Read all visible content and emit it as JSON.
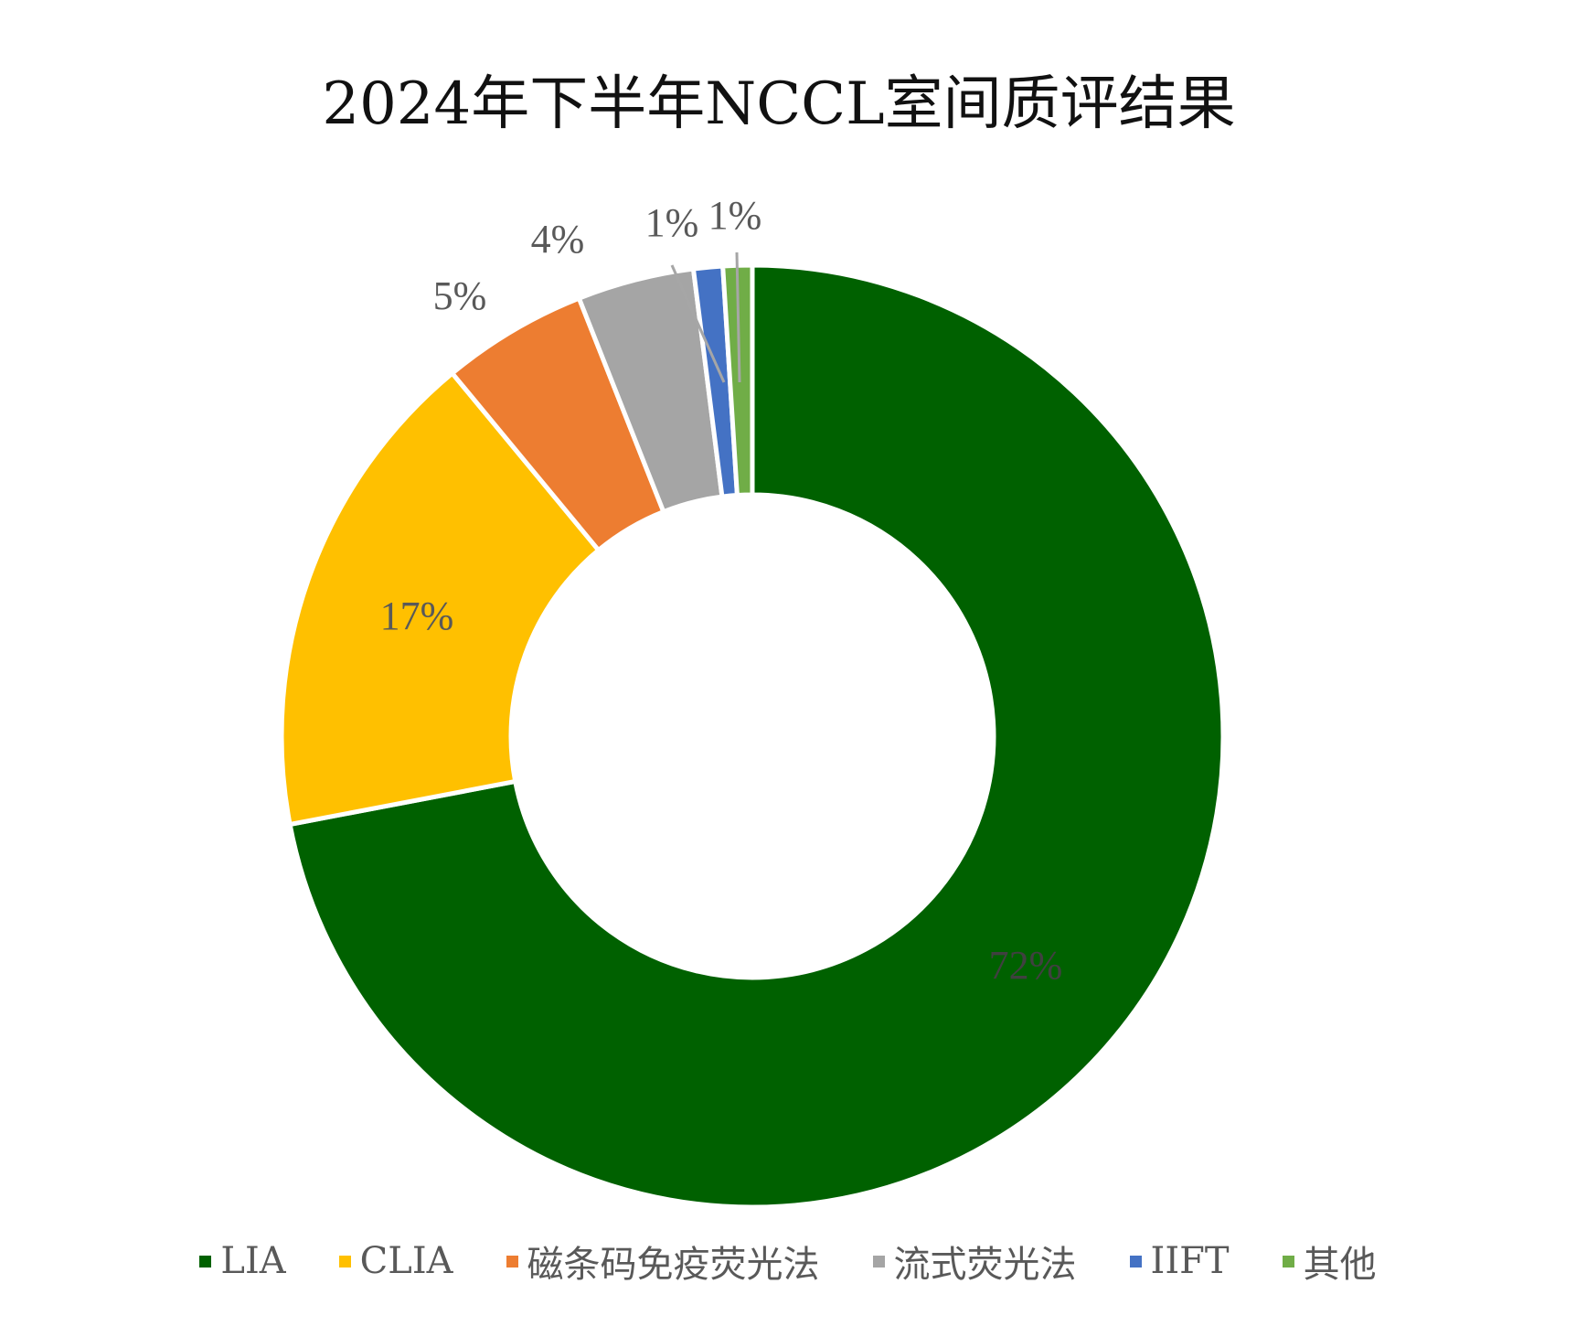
{
  "chart_data": {
    "type": "pie",
    "variant": "donut",
    "title": "2024年下半年NCCL室间质评结果",
    "categories": [
      "LIA",
      "CLIA",
      "磁条码免疫荧光法",
      "流式荧光法",
      "IIFT",
      "其他"
    ],
    "values": [
      72,
      17,
      5,
      4,
      1,
      1
    ],
    "data_labels": [
      "72%",
      "17%",
      "5%",
      "4%",
      "1%",
      "1%"
    ],
    "colors": [
      "#006100",
      "#FFC000",
      "#ED7D31",
      "#A5A5A5",
      "#4472C4",
      "#70AD47"
    ],
    "legend_position": "bottom"
  }
}
